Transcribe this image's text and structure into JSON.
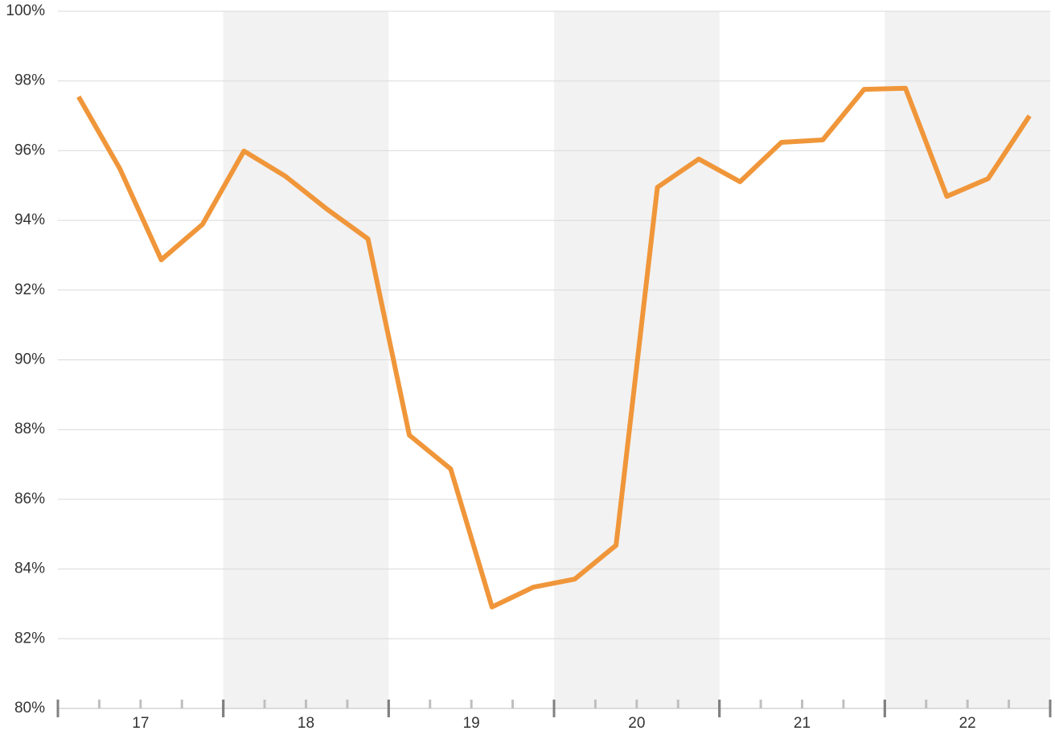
{
  "chart_data": {
    "type": "line",
    "x": [
      16.625,
      16.875,
      17.125,
      17.375,
      17.625,
      17.875,
      18.125,
      18.375,
      18.625,
      18.875,
      19.125,
      19.375,
      19.625,
      19.875,
      20.125,
      20.375,
      20.625,
      20.875,
      21.125,
      21.375,
      21.625,
      21.875,
      22.125,
      22.375
    ],
    "series": [
      {
        "color": "#f0963a",
        "values": [
          97.55,
          95.48,
          92.87,
          93.89,
          95.99,
          95.27,
          94.33,
          93.47,
          87.84,
          86.87,
          82.91,
          83.48,
          83.71,
          84.68,
          94.95,
          95.76,
          95.11,
          96.24,
          96.31,
          97.76,
          97.79,
          94.69,
          95.2,
          97.0
        ]
      }
    ],
    "xlim": [
      16.5,
      22.5
    ],
    "xticks": [
      17,
      18,
      19,
      20,
      21,
      22
    ],
    "ylim": [
      80,
      100
    ],
    "yticks": [
      {
        "value": 80,
        "label": "80%"
      },
      {
        "value": 82,
        "label": "82%"
      },
      {
        "value": 84,
        "label": "84%"
      },
      {
        "value": 86,
        "label": "86%"
      },
      {
        "value": 88,
        "label": "88%"
      },
      {
        "value": 90,
        "label": "90%"
      },
      {
        "value": 92,
        "label": "92%"
      },
      {
        "value": 94,
        "label": "94%"
      },
      {
        "value": 96,
        "label": "96%"
      },
      {
        "value": 98,
        "label": "98%"
      },
      {
        "value": 100,
        "label": "100%"
      }
    ],
    "grid": true,
    "alternate_bands": true
  }
}
